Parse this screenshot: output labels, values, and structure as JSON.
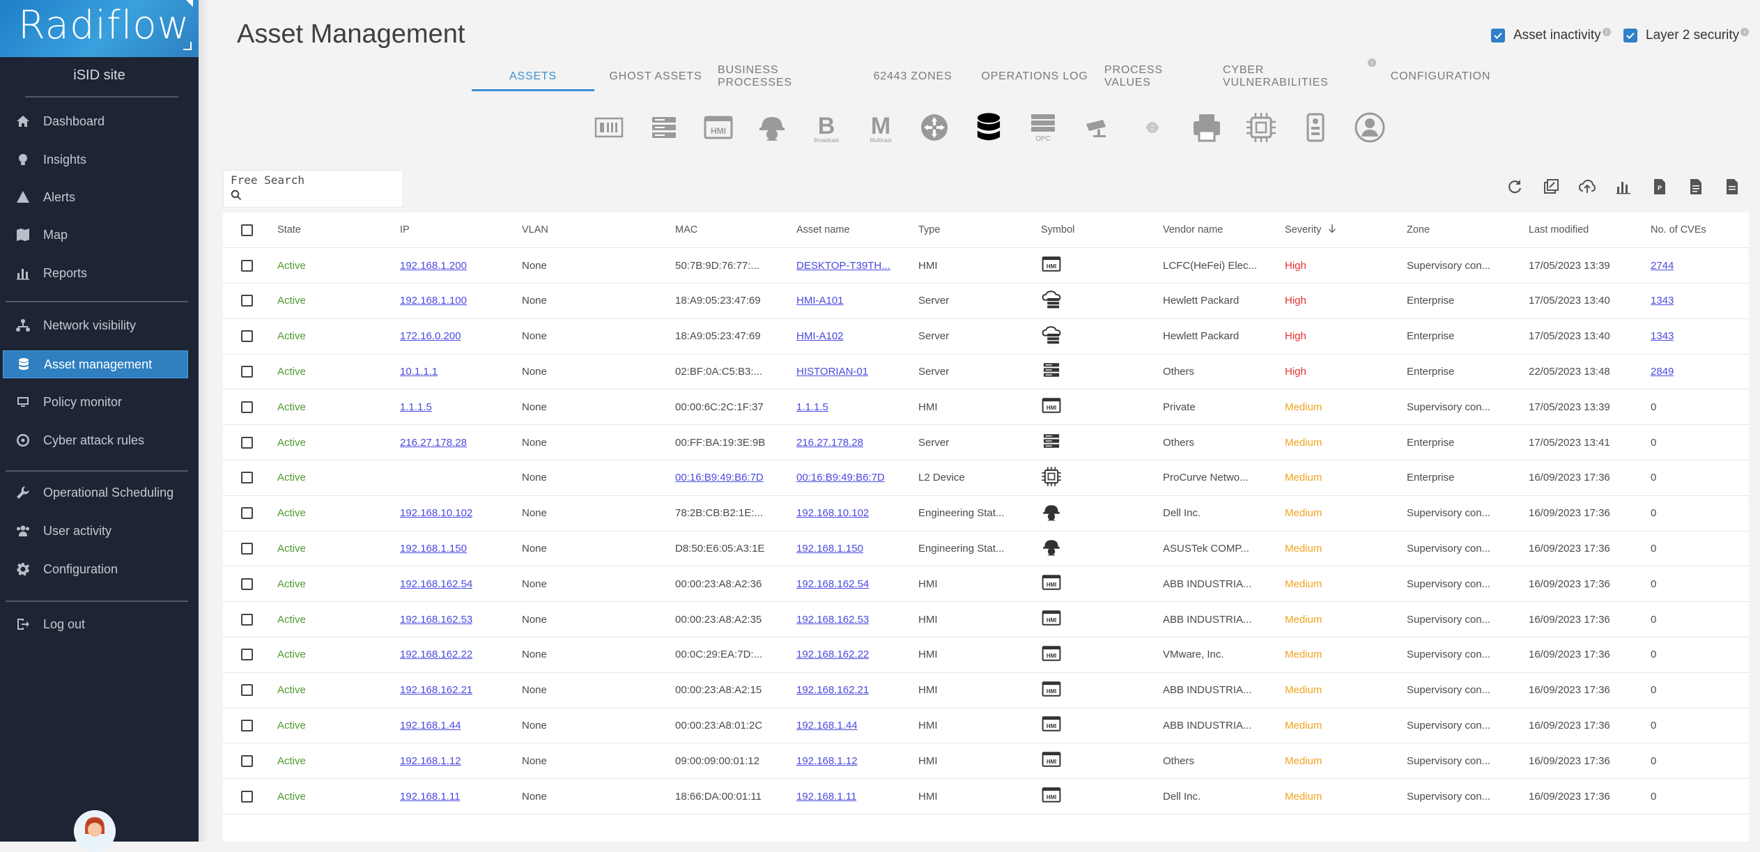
{
  "brand": {
    "logo_text": "Radiflow"
  },
  "site_name": "iSID site",
  "nav": [
    {
      "label": "Dashboard",
      "icon": "home-icon"
    },
    {
      "label": "Insights",
      "icon": "lightbulb-icon"
    },
    {
      "label": "Alerts",
      "icon": "warning-icon"
    },
    {
      "label": "Map",
      "icon": "map-icon"
    },
    {
      "label": "Reports",
      "icon": "bar-chart-icon"
    },
    {
      "label": "Network visibility",
      "icon": "network-icon"
    },
    {
      "label": "Asset management",
      "icon": "database-icon",
      "active": true
    },
    {
      "label": "Policy monitor",
      "icon": "monitor-icon"
    },
    {
      "label": "Cyber attack rules",
      "icon": "crosshair-icon"
    },
    {
      "label": "Operational Scheduling",
      "icon": "wrench-icon"
    },
    {
      "label": "User activity",
      "icon": "users-icon"
    },
    {
      "label": "Configuration",
      "icon": "gear-icon"
    },
    {
      "label": "Log out",
      "icon": "logout-icon"
    }
  ],
  "page_title": "Asset Management",
  "toggles": [
    {
      "label": "Asset inactivity",
      "checked": true
    },
    {
      "label": "Layer 2 security",
      "checked": true
    }
  ],
  "tabs": [
    "ASSETS",
    "GHOST ASSETS",
    "BUSINESS PROCESSES",
    "62443 ZONES",
    "OPERATIONS LOG",
    "PROCESS VALUES",
    "CYBER VULNERABILITIES",
    "CONFIGURATION"
  ],
  "active_tab": "ASSETS",
  "asset_type_filters": [
    {
      "icon": "rack-icon",
      "label": ""
    },
    {
      "icon": "server-icon",
      "label": ""
    },
    {
      "icon": "hmi-icon",
      "label": ""
    },
    {
      "icon": "engineer-helmet-icon",
      "label": ""
    },
    {
      "icon": "broadcast-icon",
      "letter": "B",
      "label": "Broadcast"
    },
    {
      "icon": "multicast-icon",
      "letter": "M",
      "label": "Multicast"
    },
    {
      "icon": "router-icon",
      "label": ""
    },
    {
      "icon": "database-icon",
      "label": ""
    },
    {
      "icon": "opc-server-icon",
      "label": "OPC"
    },
    {
      "icon": "camera-icon",
      "label": ""
    },
    {
      "icon": "gear-device-icon",
      "label": ""
    },
    {
      "icon": "printer-icon",
      "label": ""
    },
    {
      "icon": "chip-icon",
      "label": ""
    },
    {
      "icon": "plc-icon",
      "label": ""
    },
    {
      "icon": "user-icon",
      "label": ""
    }
  ],
  "search": {
    "label": "Free Search",
    "value": ""
  },
  "toolbar_icons": [
    "refresh-icon",
    "bulk-edit-icon",
    "cloud-upload-icon",
    "stats-icon",
    "pdf-icon",
    "document-icon",
    "export-icon"
  ],
  "table": {
    "columns": [
      "State",
      "IP",
      "VLAN",
      "MAC",
      "Asset name",
      "Type",
      "Symbol",
      "Vendor name",
      "Severity",
      "Zone",
      "Last modified",
      "No. of CVEs"
    ],
    "sort_column": "Severity",
    "rows": [
      {
        "state": "Active",
        "ip": "192.168.1.200",
        "vlan": "None",
        "mac": "50:7B:9D:76:77:...",
        "mac_link": false,
        "name": "DESKTOP-T39TH...",
        "type": "HMI",
        "symbol": "hmi-icon",
        "vendor": "LCFC(HeFei) Elec...",
        "severity": "High",
        "zone": "Supervisory con...",
        "modified": "17/05/2023 13:39",
        "cves": "2744",
        "cves_link": true
      },
      {
        "state": "Active",
        "ip": "192.168.1.100",
        "vlan": "None",
        "mac": "18:A9:05:23:47:69",
        "mac_link": false,
        "name": "HMI-A101",
        "type": "Server",
        "symbol": "cloud-server-icon",
        "vendor": "Hewlett Packard",
        "severity": "High",
        "zone": "Enterprise",
        "modified": "17/05/2023 13:40",
        "cves": "1343",
        "cves_link": true
      },
      {
        "state": "Active",
        "ip": "172.16.0.200",
        "vlan": "None",
        "mac": "18:A9:05:23:47:69",
        "mac_link": false,
        "name": "HMI-A102",
        "type": "Server",
        "symbol": "cloud-server-icon",
        "vendor": "Hewlett Packard",
        "severity": "High",
        "zone": "Enterprise",
        "modified": "17/05/2023 13:40",
        "cves": "1343",
        "cves_link": true
      },
      {
        "state": "Active",
        "ip": "10.1.1.1",
        "vlan": "None",
        "mac": "02:BF:0A:C5:B3:...",
        "mac_link": false,
        "name": "HISTORIAN-01",
        "type": "Server",
        "symbol": "server-icon",
        "vendor": "Others",
        "severity": "High",
        "zone": "Enterprise",
        "modified": "22/05/2023 13:48",
        "cves": "2849",
        "cves_link": true
      },
      {
        "state": "Active",
        "ip": "1.1.1.5",
        "vlan": "None",
        "mac": "00:00:6C:2C:1F:37",
        "mac_link": false,
        "name": "1.1.1.5",
        "type": "HMI",
        "symbol": "hmi-icon",
        "vendor": "Private",
        "severity": "Medium",
        "zone": "Supervisory con...",
        "modified": "17/05/2023 13:39",
        "cves": "0",
        "cves_link": false
      },
      {
        "state": "Active",
        "ip": "216.27.178.28",
        "vlan": "None",
        "mac": "00:FF:BA:19:3E:9B",
        "mac_link": false,
        "name": "216.27.178.28",
        "type": "Server",
        "symbol": "server-icon",
        "vendor": "Others",
        "severity": "Medium",
        "zone": "Enterprise",
        "modified": "17/05/2023 13:41",
        "cves": "0",
        "cves_link": false
      },
      {
        "state": "Active",
        "ip": "",
        "vlan": "None",
        "mac": "00:16:B9:49:B6:7D",
        "mac_link": true,
        "name": "00:16:B9:49:B6:7D",
        "type": "L2 Device",
        "symbol": "chip-icon",
        "vendor": "ProCurve Netwo...",
        "severity": "Medium",
        "zone": "Enterprise",
        "modified": "16/09/2023 17:36",
        "cves": "0",
        "cves_link": false
      },
      {
        "state": "Active",
        "ip": "192.168.10.102",
        "vlan": "None",
        "mac": "78:2B:CB:B2:1E:...",
        "mac_link": false,
        "name": "192.168.10.102",
        "type": "Engineering Stat...",
        "symbol": "engineer-helmet-icon",
        "vendor": "Dell Inc.",
        "severity": "Medium",
        "zone": "Supervisory con...",
        "modified": "16/09/2023 17:36",
        "cves": "0",
        "cves_link": false
      },
      {
        "state": "Active",
        "ip": "192.168.1.150",
        "vlan": "None",
        "mac": "D8:50:E6:05:A3:1E",
        "mac_link": false,
        "name": "192.168.1.150",
        "type": "Engineering Stat...",
        "symbol": "engineer-helmet-icon",
        "vendor": "ASUSTek COMP...",
        "severity": "Medium",
        "zone": "Supervisory con...",
        "modified": "16/09/2023 17:36",
        "cves": "0",
        "cves_link": false
      },
      {
        "state": "Active",
        "ip": "192.168.162.54",
        "vlan": "None",
        "mac": "00:00:23:A8:A2:36",
        "mac_link": false,
        "name": "192.168.162.54",
        "type": "HMI",
        "symbol": "hmi-icon",
        "vendor": "ABB INDUSTRIA...",
        "severity": "Medium",
        "zone": "Supervisory con...",
        "modified": "16/09/2023 17:36",
        "cves": "0",
        "cves_link": false
      },
      {
        "state": "Active",
        "ip": "192.168.162.53",
        "vlan": "None",
        "mac": "00:00:23:A8:A2:35",
        "mac_link": false,
        "name": "192.168.162.53",
        "type": "HMI",
        "symbol": "hmi-icon",
        "vendor": "ABB INDUSTRIA...",
        "severity": "Medium",
        "zone": "Supervisory con...",
        "modified": "16/09/2023 17:36",
        "cves": "0",
        "cves_link": false
      },
      {
        "state": "Active",
        "ip": "192.168.162.22",
        "vlan": "None",
        "mac": "00:0C:29:EA:7D:...",
        "mac_link": false,
        "name": "192.168.162.22",
        "type": "HMI",
        "symbol": "hmi-icon",
        "vendor": "VMware, Inc.",
        "severity": "Medium",
        "zone": "Supervisory con...",
        "modified": "16/09/2023 17:36",
        "cves": "0",
        "cves_link": false
      },
      {
        "state": "Active",
        "ip": "192.168.162.21",
        "vlan": "None",
        "mac": "00:00:23:A8:A2:15",
        "mac_link": false,
        "name": "192.168.162.21",
        "type": "HMI",
        "symbol": "hmi-icon",
        "vendor": "ABB INDUSTRIA...",
        "severity": "Medium",
        "zone": "Supervisory con...",
        "modified": "16/09/2023 17:36",
        "cves": "0",
        "cves_link": false
      },
      {
        "state": "Active",
        "ip": "192.168.1.44",
        "vlan": "None",
        "mac": "00:00:23:A8:01:2C",
        "mac_link": false,
        "name": "192.168.1.44",
        "type": "HMI",
        "symbol": "hmi-icon",
        "vendor": "ABB INDUSTRIA...",
        "severity": "Medium",
        "zone": "Supervisory con...",
        "modified": "16/09/2023 17:36",
        "cves": "0",
        "cves_link": false
      },
      {
        "state": "Active",
        "ip": "192.168.1.12",
        "vlan": "None",
        "mac": "09:00:09:00:01:12",
        "mac_link": false,
        "name": "192.168.1.12",
        "type": "HMI",
        "symbol": "hmi-icon",
        "vendor": "Others",
        "severity": "Medium",
        "zone": "Supervisory con...",
        "modified": "16/09/2023 17:36",
        "cves": "0",
        "cves_link": false
      },
      {
        "state": "Active",
        "ip": "192.168.1.11",
        "vlan": "None",
        "mac": "18:66:DA:00:01:11",
        "mac_link": false,
        "name": "192.168.1.11",
        "type": "HMI",
        "symbol": "hmi-icon",
        "vendor": "Dell Inc.",
        "severity": "Medium",
        "zone": "Supervisory con...",
        "modified": "16/09/2023 17:36",
        "cves": "0",
        "cves_link": false
      }
    ]
  },
  "colors": {
    "accent": "#3b8fd1",
    "sidebar_bg": "#1d2433",
    "active_state": "#4e9a2e",
    "severity_high": "#e53030",
    "severity_medium": "#f0a31d",
    "link": "#4a4ae0"
  }
}
